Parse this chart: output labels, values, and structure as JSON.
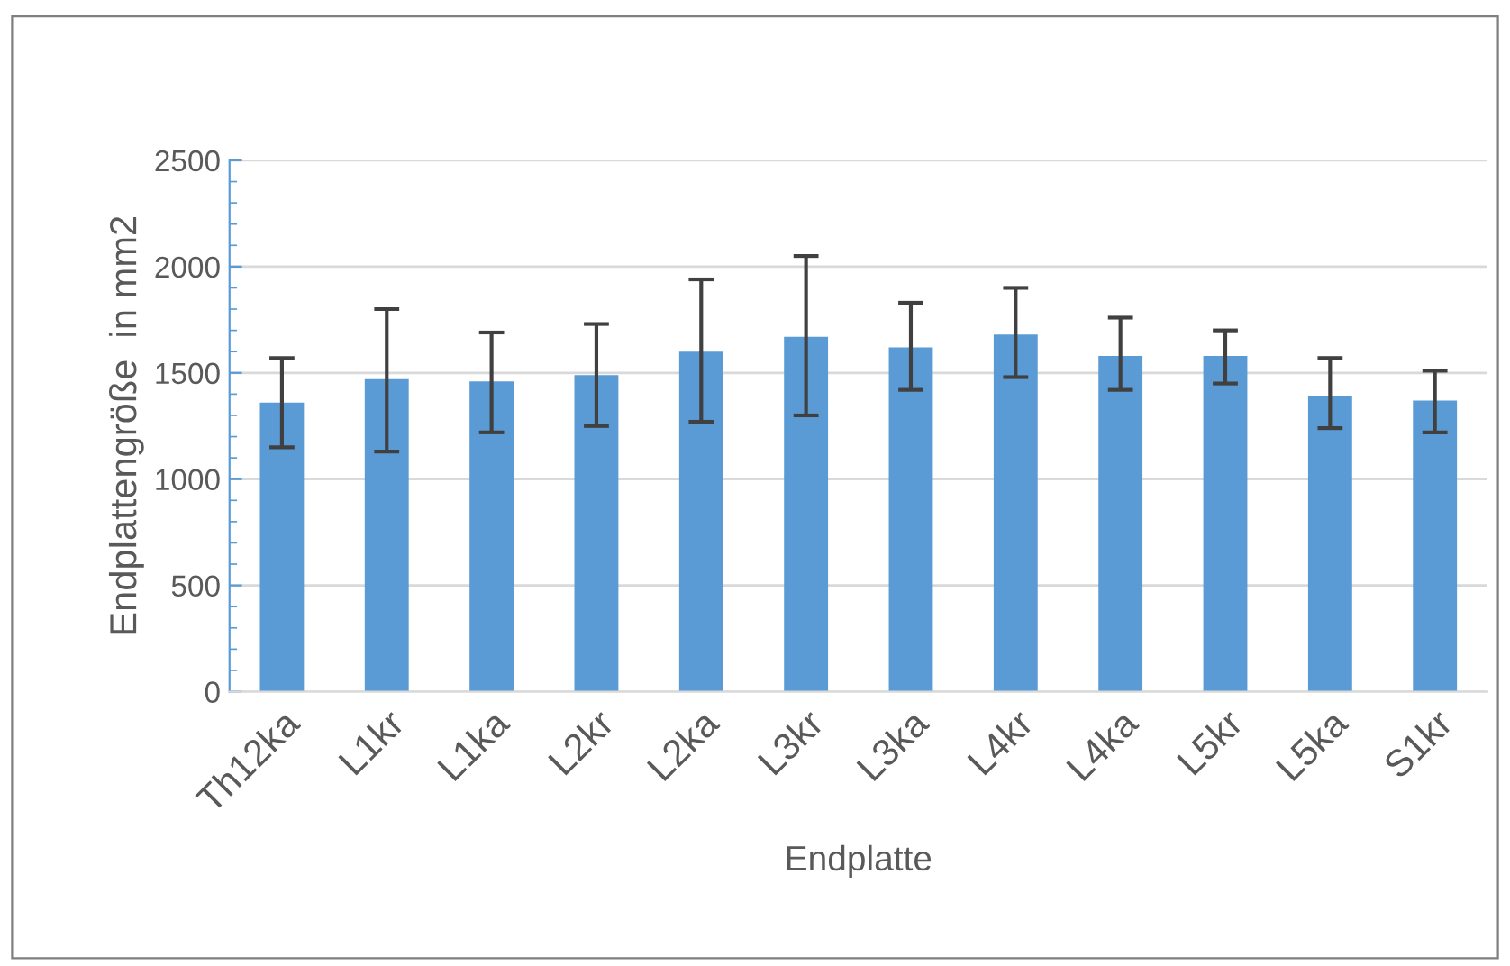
{
  "chart_data": {
    "type": "bar",
    "xlabel": "Endplatte",
    "ylabel": "Endplattengröße  in mm2",
    "categories": [
      "Th12ka",
      "L1kr",
      "L1ka",
      "L2kr",
      "L2ka",
      "L3kr",
      "L3ka",
      "L4kr",
      "L4ka",
      "L5kr",
      "L5ka",
      "S1kr"
    ],
    "values": [
      1360,
      1470,
      1460,
      1490,
      1600,
      1670,
      1620,
      1680,
      1580,
      1580,
      1390,
      1370
    ],
    "errors": [
      [
        1150,
        1570
      ],
      [
        1130,
        1800
      ],
      [
        1220,
        1690
      ],
      [
        1250,
        1730
      ],
      [
        1270,
        1940
      ],
      [
        1300,
        2050
      ],
      [
        1420,
        1830
      ],
      [
        1480,
        1900
      ],
      [
        1420,
        1760
      ],
      [
        1450,
        1700
      ],
      [
        1240,
        1570
      ],
      [
        1220,
        1510
      ]
    ],
    "color": "#5b9bd5",
    "ylim": [
      0,
      2500
    ],
    "yticks": [
      0,
      500,
      1000,
      1500,
      2000,
      2500
    ],
    "grid": "y"
  }
}
